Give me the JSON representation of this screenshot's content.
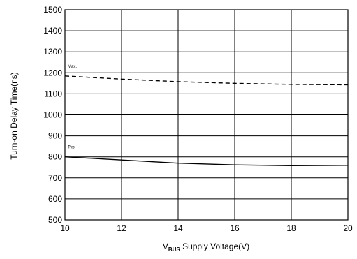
{
  "chart_data": {
    "type": "line",
    "title": "",
    "xlabel": {
      "main": "V",
      "sub": "BUS",
      "rest": " Supply Voltage(V)"
    },
    "ylabel": "Turn-on Delay Time(ns)",
    "xlim": [
      10,
      20
    ],
    "ylim": [
      500,
      1500
    ],
    "xticks": [
      10,
      12,
      14,
      16,
      18,
      20
    ],
    "yticks": [
      500,
      600,
      700,
      800,
      900,
      1000,
      1100,
      1200,
      1300,
      1400,
      1500
    ],
    "grid": true,
    "series": [
      {
        "name": "Max.",
        "style": "dashed",
        "color": "#000000",
        "x": [
          10,
          12,
          14,
          16,
          18,
          20
        ],
        "values": [
          1185,
          1170,
          1158,
          1150,
          1145,
          1143
        ]
      },
      {
        "name": "Typ.",
        "style": "solid",
        "color": "#000000",
        "x": [
          10,
          12,
          14,
          16,
          18,
          20
        ],
        "values": [
          800,
          785,
          770,
          762,
          758,
          760
        ]
      }
    ]
  }
}
